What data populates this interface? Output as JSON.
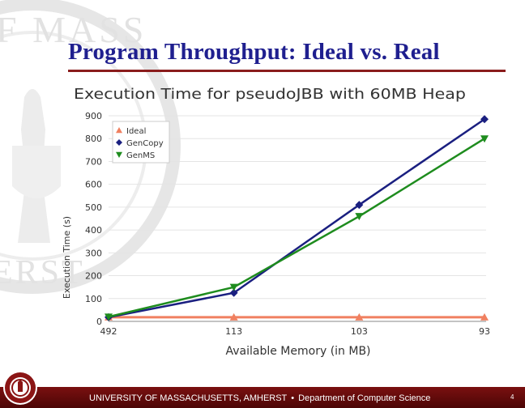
{
  "slide": {
    "title": "Program Throughput: Ideal vs. Real",
    "footer_university": "UNIVERSITY OF MASSACHUSETTS, AMHERST",
    "footer_separator": "•",
    "footer_department": "Department of Computer Science",
    "page_number": "4"
  },
  "background": {
    "seal_text_top": "F MASS",
    "seal_text_left": "ERST"
  },
  "colors": {
    "title": "#1f1f8f",
    "footer": "#6a0c0c",
    "ideal": "#f08060",
    "gencopy": "#1a1f80",
    "genms": "#1e8c1e"
  },
  "chart_data": {
    "type": "line",
    "title": "Execution Time for pseudoJBB with 60MB Heap",
    "xlabel": "Available Memory (in MB)",
    "ylabel": "Execution Time (s)",
    "categories": [
      "492",
      "113",
      "103",
      "93"
    ],
    "ylim": [
      0,
      900
    ],
    "yticks": [
      0,
      100,
      200,
      300,
      400,
      500,
      600,
      700,
      800,
      900
    ],
    "legend_position": "top-left",
    "series": [
      {
        "name": "Ideal",
        "marker": "triangle-up",
        "values": [
          18,
          18,
          18,
          18
        ]
      },
      {
        "name": "GenCopy",
        "marker": "diamond",
        "values": [
          18,
          125,
          510,
          885
        ]
      },
      {
        "name": "GenMS",
        "marker": "triangle-down",
        "values": [
          20,
          150,
          460,
          800
        ]
      }
    ]
  }
}
